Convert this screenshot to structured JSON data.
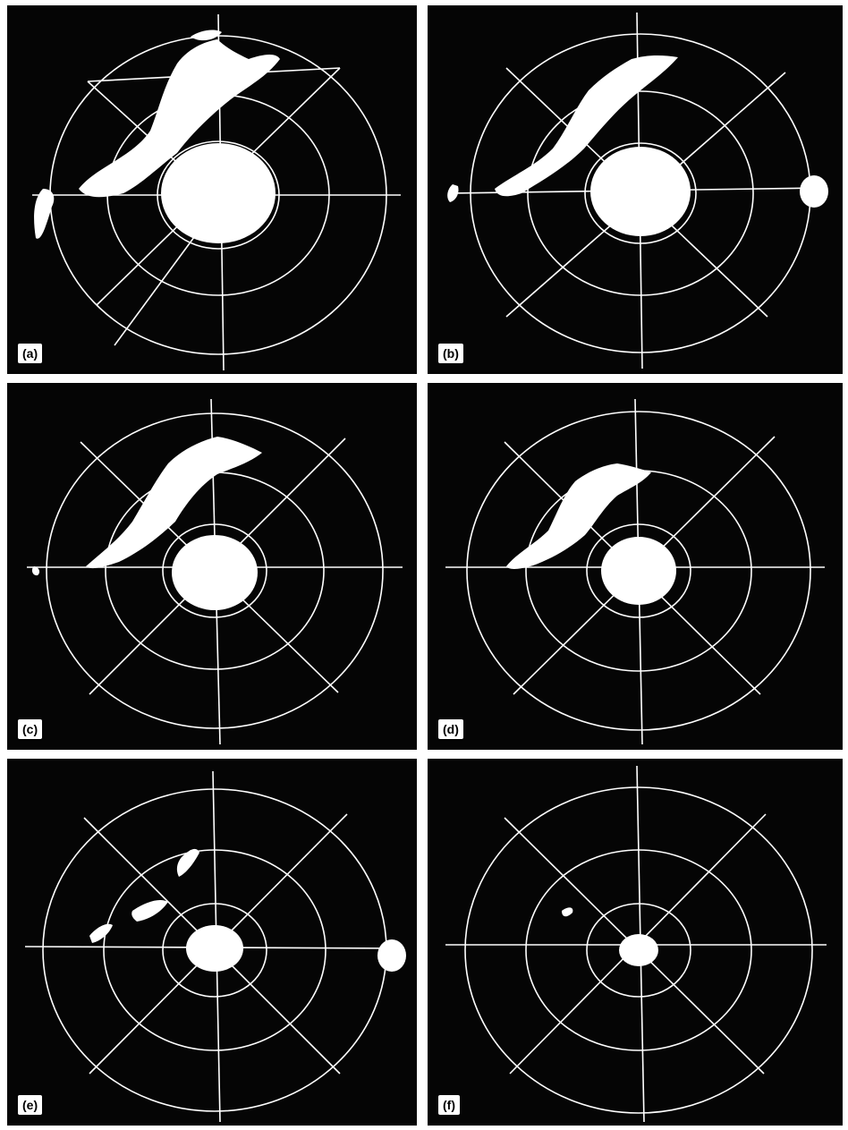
{
  "figure": {
    "panels": [
      {
        "label": "(a)",
        "display": "radar PPI scope image: heavy clutter band to the northwest plus dense ground clutter around center"
      },
      {
        "label": "(b)",
        "display": "radar PPI scope image: reduced northwest band, clutter around center, echo at east edge"
      },
      {
        "label": "(c)",
        "display": "radar PPI scope image: broken northwest band, dense center clutter"
      },
      {
        "label": "(d)",
        "display": "radar PPI scope image: thinner northwest band, center clutter"
      },
      {
        "label": "(e)",
        "display": "radar PPI scope image: sparse northwest returns, small center clutter, echo at east edge"
      },
      {
        "label": "(f)",
        "display": "radar PPI scope image: almost no returns, very small center clutter"
      }
    ],
    "colors": {
      "background": "#050505",
      "overlay": "#ffffff",
      "page": "#ffffff"
    }
  }
}
